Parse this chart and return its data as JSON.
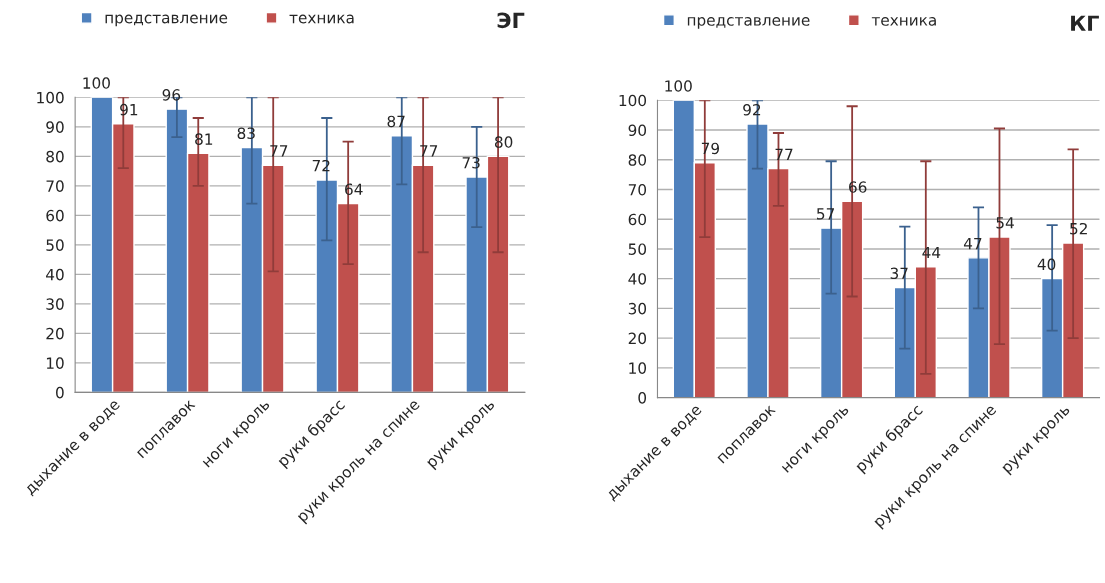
{
  "chart_data": [
    {
      "type": "bar",
      "title": "ЭГ",
      "categories": [
        "дыхание в воде",
        "поплавок",
        "ноги кроль",
        "руки брасс",
        "руки кроль на спине",
        "руки кроль"
      ],
      "series": [
        {
          "name": "представление",
          "color": "#4f81bd",
          "values": [
            100,
            96,
            83,
            72,
            87,
            73
          ],
          "errors": [
            null,
            [
              86.5,
              100
            ],
            [
              64,
              100
            ],
            [
              51.5,
              93
            ],
            [
              70.5,
              100
            ],
            [
              56,
              90
            ]
          ]
        },
        {
          "name": "техника",
          "color": "#c0504d",
          "values": [
            91,
            81,
            77,
            64,
            77,
            80
          ],
          "errors": [
            [
              76,
              100
            ],
            [
              70,
              93
            ],
            [
              41,
              100
            ],
            [
              43.5,
              85
            ],
            [
              47.5,
              100
            ],
            [
              47.5,
              100
            ]
          ]
        }
      ],
      "ylim": [
        0,
        100
      ],
      "yticks": [
        0,
        10,
        20,
        30,
        40,
        50,
        60,
        70,
        80,
        90,
        100
      ],
      "grid": "y",
      "legend": "top left",
      "data_labels": true
    },
    {
      "type": "bar",
      "title": "КГ",
      "categories": [
        "дыхание в воде",
        "поплавок",
        "ноги кроль",
        "руки брасс",
        "руки кроль на спине",
        "руки кроль"
      ],
      "series": [
        {
          "name": "представление",
          "color": "#4f81bd",
          "values": [
            100,
            92,
            57,
            37,
            47,
            40
          ],
          "errors": [
            null,
            [
              77,
              100
            ],
            [
              35,
              79.5
            ],
            [
              16.5,
              57.5
            ],
            [
              30,
              64
            ],
            [
              22.5,
              58
            ]
          ]
        },
        {
          "name": "техника",
          "color": "#c0504d",
          "values": [
            79,
            77,
            66,
            44,
            54,
            52
          ],
          "errors": [
            [
              54,
              100
            ],
            [
              64.5,
              89
            ],
            [
              34,
              98
            ],
            [
              8,
              79.5
            ],
            [
              18,
              90.5
            ],
            [
              20,
              83.5
            ]
          ]
        }
      ],
      "ylim": [
        0,
        100
      ],
      "yticks": [
        0,
        10,
        20,
        30,
        40,
        50,
        60,
        70,
        80,
        90,
        100
      ],
      "grid": "y",
      "legend": "top left",
      "data_labels": true
    }
  ]
}
